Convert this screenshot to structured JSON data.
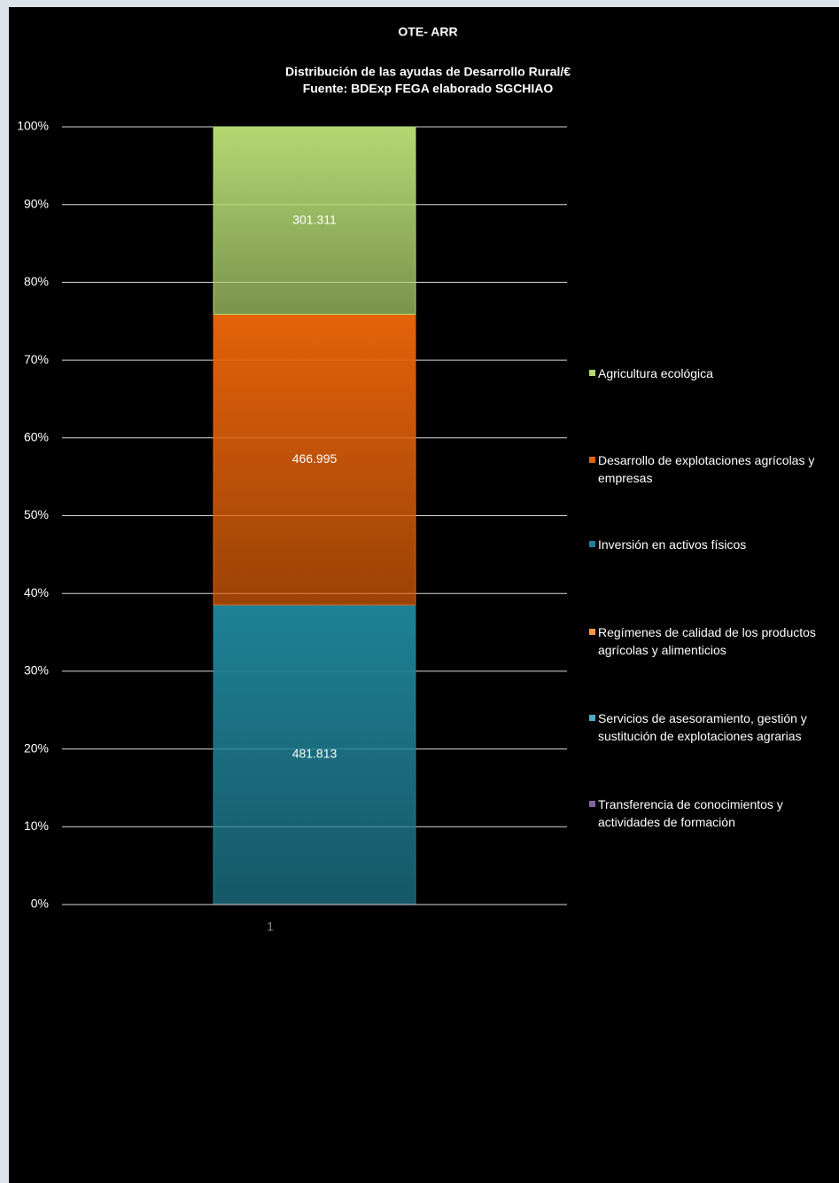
{
  "chart_data": {
    "type": "stacked_percent_bar",
    "title": "OTE- ARR",
    "subtitle": [
      "Distribución de las ayudas de Desarrollo Rural/€",
      "Fuente: BDExp FEGA elaborado SGCHIAO"
    ],
    "categories": [
      "1"
    ],
    "series": [
      {
        "name": "Transferencia de conocimientos y actividades de formación",
        "color": "#8064a2",
        "values": [
          0
        ]
      },
      {
        "name": "Servicios de asesoramiento, gestión y sustitución de explotaciones agrarias",
        "color": "#4bacc6",
        "values": [
          0
        ]
      },
      {
        "name": "Regímenes de calidad de los productos agrícolas y alimenticios",
        "color": "#f79646",
        "values": [
          0
        ]
      },
      {
        "name": "Inversión en activos físicos",
        "color": "#1f8196",
        "values": [
          481813
        ],
        "value_labels": [
          "481.813"
        ]
      },
      {
        "name": "Desarrollo de explotaciones agrícolas y empresas",
        "color": "#e4620a",
        "values": [
          466995
        ],
        "value_labels": [
          "466.995"
        ]
      },
      {
        "name": "Agricultura ecológica",
        "color": "#b3d872",
        "values": [
          301311
        ],
        "value_labels": [
          "301.311"
        ]
      }
    ],
    "ylim": [
      0,
      100
    ],
    "yticks": [
      {
        "value": 0,
        "label": "0%"
      },
      {
        "value": 10,
        "label": "10%"
      },
      {
        "value": 20,
        "label": "20%"
      },
      {
        "value": 30,
        "label": "30%"
      },
      {
        "value": 40,
        "label": "40%"
      },
      {
        "value": 50,
        "label": "50%"
      },
      {
        "value": 60,
        "label": "60%"
      },
      {
        "value": 70,
        "label": "70%"
      },
      {
        "value": 80,
        "label": "80%"
      },
      {
        "value": 90,
        "label": "90%"
      },
      {
        "value": 100,
        "label": "100%"
      }
    ],
    "grid": true,
    "legend": "right"
  }
}
